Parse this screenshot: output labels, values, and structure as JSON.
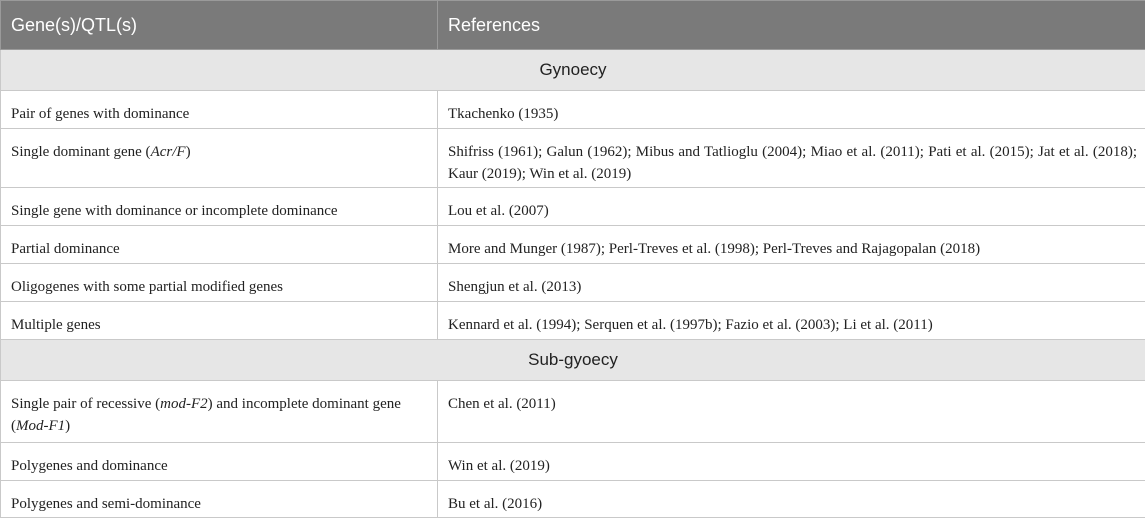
{
  "table": {
    "headers": {
      "gene": "Gene(s)/QTL(s)",
      "references": "References"
    },
    "sections": [
      {
        "title": "Gynoecy",
        "rows": [
          {
            "gene": "Pair of genes with dominance",
            "references": "Tkachenko (1935)"
          },
          {
            "gene_before": "Single dominant gene (",
            "gene_italic": "Acr/F",
            "gene_after": ")",
            "references": "Shifriss (1961); Galun (1962); Mibus and Tatlioglu (2004); Miao et al. (2011); Pati et al. (2015); Jat et al. (2018); Kaur (2019); Win et al. (2019)"
          },
          {
            "gene": "Single gene with dominance or incomplete dominance",
            "references": "Lou et al. (2007)"
          },
          {
            "gene": "Partial dominance",
            "references": "More and Munger (1987); Perl-Treves et al. (1998); Perl-Treves and Rajagopalan (2018)"
          },
          {
            "gene": "Oligogenes with some partial modified genes",
            "references": "Shengjun et al. (2013)"
          },
          {
            "gene": "Multiple genes",
            "references": "Kennard et al. (1994); Serquen et al. (1997b); Fazio et al. (2003); Li et al. (2011)"
          }
        ]
      },
      {
        "title": "Sub-gyoecy",
        "rows": [
          {
            "gene_p1": "Single pair of recessive (",
            "gene_i1": "mod-F2",
            "gene_p2": ") and incomplete dominant gene (",
            "gene_i2": "Mod-F1",
            "gene_p3": ")",
            "references": "Chen et al. (2011)"
          },
          {
            "gene": "Polygenes and dominance",
            "references": "Win et al. (2019)"
          },
          {
            "gene": "Polygenes and semi-dominance",
            "references": "Bu et al. (2016)"
          }
        ]
      }
    ]
  }
}
